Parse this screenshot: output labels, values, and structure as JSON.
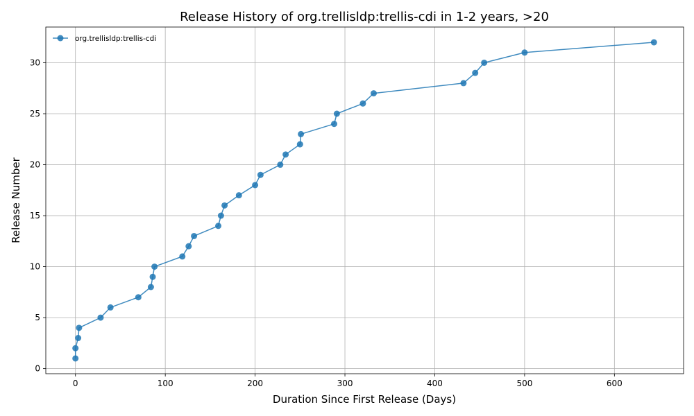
{
  "chart_data": {
    "type": "line",
    "title": "Release History of org.trellisldp:trellis-cdi in 1-2 years, >20",
    "xlabel": "Duration Since First Release (Days)",
    "ylabel": "Release Number",
    "xlim": [
      -33,
      677
    ],
    "ylim": [
      -0.5,
      33.5
    ],
    "xticks": [
      0,
      100,
      200,
      300,
      400,
      500,
      600
    ],
    "yticks": [
      0,
      5,
      10,
      15,
      20,
      25,
      30
    ],
    "grid": true,
    "legend_position": "top-left",
    "color": "#1f77b4",
    "series": [
      {
        "name": "org.trellisldp:trellis-cdi",
        "x": [
          0,
          0,
          3,
          4,
          28,
          39,
          70,
          84,
          86,
          88,
          119,
          126,
          132,
          159,
          162,
          166,
          182,
          200,
          206,
          228,
          234,
          250,
          251,
          288,
          291,
          320,
          332,
          432,
          445,
          455,
          500,
          644
        ],
        "y": [
          1,
          2,
          3,
          4,
          5,
          6,
          7,
          8,
          9,
          10,
          11,
          12,
          13,
          14,
          15,
          16,
          17,
          18,
          19,
          20,
          21,
          22,
          23,
          24,
          25,
          26,
          27,
          28,
          29,
          30,
          31,
          32
        ]
      }
    ]
  }
}
